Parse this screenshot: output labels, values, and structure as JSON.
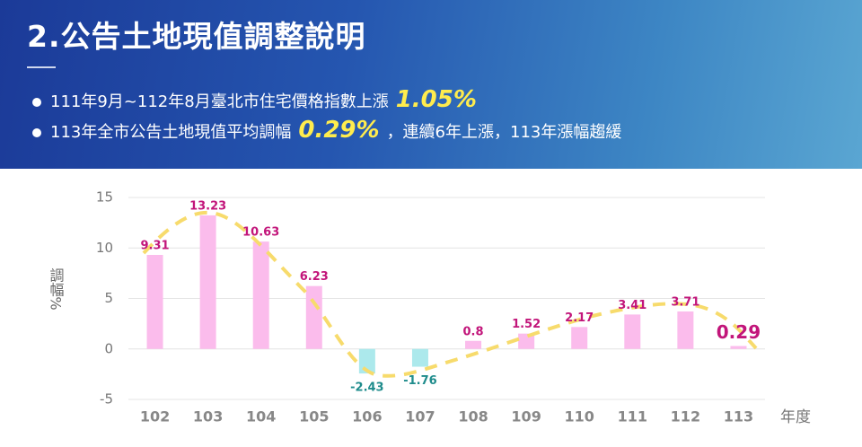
{
  "header": {
    "title": "2.公告土地現值調整說明",
    "bullets": [
      {
        "text": "111年9月~112年8月臺北市住宅價格指數上漲",
        "highlight": "1.05%"
      },
      {
        "text": "113年全市公告土地現值平均調幅",
        "highlight": "0.29%",
        "tail": "，連續6年上漲，113年漲幅趨緩"
      }
    ]
  },
  "chart_data": {
    "type": "bar",
    "categories": [
      "102",
      "103",
      "104",
      "105",
      "106",
      "107",
      "108",
      "109",
      "110",
      "111",
      "112",
      "113"
    ],
    "values": [
      9.31,
      13.23,
      10.63,
      6.23,
      -2.43,
      -1.76,
      0.8,
      1.52,
      2.17,
      3.41,
      3.71,
      0.29
    ],
    "color": "#fbbcec",
    "negative_color": "#ace9ec",
    "label_color": "#c2157a",
    "negative_label_color": "#1f8c8c",
    "highlight_index": 11,
    "y_label": "調幅%",
    "x_label": "年度",
    "ylim": [
      -5,
      15
    ],
    "yticks": [
      -5,
      0,
      5,
      10,
      15
    ],
    "grid": true
  }
}
